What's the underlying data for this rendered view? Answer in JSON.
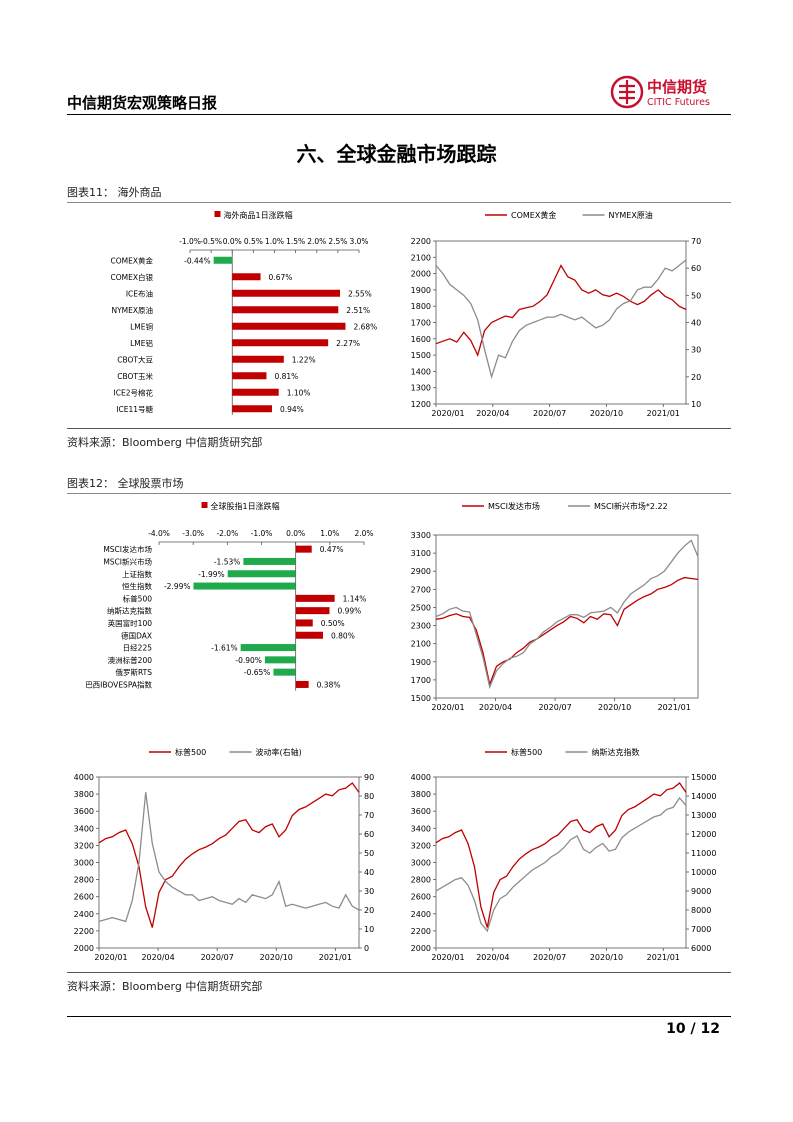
{
  "header": {
    "title": "中信期货宏观策略日报",
    "logo_cn": "中信期货",
    "logo_en": "CITIC Futures",
    "logo_icon": "citic-circle-logo-icon",
    "brand_color": "#c8102e"
  },
  "section_title": "六、全球金融市场跟踪",
  "figure11": {
    "title": "图表11：  海外商品",
    "source": "资料来源：Bloomberg 中信期货研究部"
  },
  "figure12": {
    "title": "图表12：  全球股票市场",
    "source": "资料来源：Bloomberg 中信期货研究部"
  },
  "footer": {
    "page": "10  /  12"
  },
  "colors": {
    "red": "#c00000",
    "green": "#1fab4b",
    "gray": "#8c8c8c"
  },
  "chart_data": [
    {
      "id": "commodities-bar",
      "type": "bar",
      "orientation": "horizontal",
      "legend": "海外商品1日涨跌幅",
      "categories": [
        "COMEX黄金",
        "COMEX白银",
        "ICE布油",
        "NYMEX原油",
        "LME铜",
        "LME铝",
        "CBOT大豆",
        "CBOT玉米",
        "ICE2号棉花",
        "ICE11号糖"
      ],
      "values": [
        -0.44,
        0.67,
        2.55,
        2.51,
        2.68,
        2.27,
        1.22,
        0.81,
        1.1,
        0.94
      ],
      "labels": [
        "-0.44%",
        "0.67%",
        "2.55%",
        "2.51%",
        "2.68%",
        "2.27%",
        "1.22%",
        "0.81%",
        "1.10%",
        "0.94%"
      ],
      "ticks": [
        "-1.0%",
        "-0.5%",
        "0.0%",
        "0.5%",
        "1.0%",
        "1.5%",
        "2.0%",
        "2.5%",
        "3.0%"
      ],
      "xlim": [
        -1.0,
        3.0
      ]
    },
    {
      "id": "gold-oil-line",
      "type": "line",
      "legend": [
        "COMEX黄金",
        "NYMEX原油"
      ],
      "x_ticks": [
        "2020/01",
        "2020/04",
        "2020/07",
        "2020/10",
        "2021/01"
      ],
      "y_left_ticks": [
        "2200",
        "2100",
        "2000",
        "1900",
        "1800",
        "1700",
        "1600",
        "1500",
        "1400",
        "1300",
        "1200"
      ],
      "y_right_ticks": [
        "70",
        "60",
        "50",
        "40",
        "30",
        "20",
        "10"
      ],
      "ylim_left": [
        1200,
        2200
      ],
      "ylim_right": [
        10,
        70
      ],
      "series": [
        {
          "name": "COMEX黄金",
          "axis": "left",
          "color": "#c00000",
          "values": [
            1570,
            1585,
            1600,
            1580,
            1640,
            1590,
            1500,
            1650,
            1700,
            1720,
            1740,
            1730,
            1780,
            1790,
            1800,
            1830,
            1870,
            1960,
            2050,
            1980,
            1960,
            1900,
            1880,
            1900,
            1870,
            1860,
            1880,
            1860,
            1830,
            1810,
            1830,
            1870,
            1900,
            1860,
            1840,
            1800,
            1780
          ]
        },
        {
          "name": "NYMEX原油",
          "axis": "right",
          "color": "#8c8c8c",
          "values": [
            61,
            58,
            54,
            52,
            50,
            47,
            41,
            30,
            20,
            28,
            27,
            33,
            37,
            39,
            40,
            41,
            42,
            42,
            43,
            42,
            41,
            42,
            40,
            38,
            39,
            41,
            45,
            47,
            48,
            52,
            53,
            53,
            56,
            60,
            59,
            61,
            63
          ]
        }
      ]
    },
    {
      "id": "equities-bar",
      "type": "bar",
      "orientation": "horizontal",
      "legend": "全球股指1日涨跌幅",
      "categories": [
        "MSCI发达市场",
        "MSCI新兴市场",
        "上证指数",
        "恒生指数",
        "标普500",
        "纳斯达克指数",
        "英国富时100",
        "德国DAX",
        "日经225",
        "澳洲标普200",
        "俄罗斯RTS",
        "巴西IBOVESPA指数"
      ],
      "values": [
        0.47,
        -1.53,
        -1.99,
        -2.99,
        1.14,
        0.99,
        0.5,
        0.8,
        -1.61,
        -0.9,
        -0.65,
        0.38
      ],
      "labels": [
        "0.47%",
        "-1.53%",
        "-1.99%",
        "-2.99%",
        "1.14%",
        "0.99%",
        "0.50%",
        "0.80%",
        "-1.61%",
        "-0.90%",
        "-0.65%",
        "0.38%"
      ],
      "ticks": [
        "-4.0%",
        "-3.0%",
        "-2.0%",
        "-1.0%",
        "0.0%",
        "1.0%",
        "2.0%"
      ],
      "xlim": [
        -4.0,
        2.0
      ]
    },
    {
      "id": "msci-line",
      "type": "line",
      "legend": [
        "MSCI发达市场",
        "MSCI新兴市场*2.22"
      ],
      "x_ticks": [
        "2020/01",
        "2020/04",
        "2020/07",
        "2020/10",
        "2021/01"
      ],
      "y_left_ticks": [
        "3300",
        "3100",
        "2900",
        "2700",
        "2500",
        "2300",
        "2100",
        "1900",
        "1700",
        "1500"
      ],
      "ylim_left": [
        1500,
        3300
      ],
      "series": [
        {
          "name": "MSCI发达市场",
          "color": "#c00000",
          "values": [
            2370,
            2380,
            2410,
            2430,
            2400,
            2390,
            2250,
            2000,
            1650,
            1850,
            1900,
            1930,
            2000,
            2050,
            2120,
            2150,
            2200,
            2250,
            2300,
            2340,
            2400,
            2380,
            2330,
            2400,
            2370,
            2430,
            2420,
            2300,
            2480,
            2530,
            2580,
            2620,
            2650,
            2700,
            2720,
            2750,
            2800,
            2830,
            2820,
            2810
          ]
        },
        {
          "name": "MSCI新兴市场*2.22",
          "color": "#8c8c8c",
          "values": [
            2400,
            2430,
            2480,
            2500,
            2460,
            2450,
            2200,
            1950,
            1620,
            1800,
            1880,
            1940,
            1960,
            2000,
            2100,
            2150,
            2230,
            2280,
            2340,
            2380,
            2420,
            2420,
            2390,
            2440,
            2450,
            2460,
            2500,
            2440,
            2560,
            2650,
            2700,
            2750,
            2820,
            2850,
            2900,
            3000,
            3100,
            3180,
            3240,
            3060
          ]
        }
      ]
    },
    {
      "id": "sp500-vix-line",
      "type": "line",
      "legend": [
        "标普500",
        "波动率(右轴)"
      ],
      "x_ticks": [
        "2020/01",
        "2020/04",
        "2020/07",
        "2020/10",
        "2021/01"
      ],
      "y_left_ticks": [
        "4000",
        "3800",
        "3600",
        "3400",
        "3200",
        "3000",
        "2800",
        "2600",
        "2400",
        "2200",
        "2000"
      ],
      "y_right_ticks": [
        "90",
        "80",
        "70",
        "60",
        "50",
        "40",
        "30",
        "20",
        "10",
        "0"
      ],
      "ylim_left": [
        2000,
        4000
      ],
      "ylim_right": [
        0,
        90
      ],
      "series": [
        {
          "name": "标普500",
          "axis": "left",
          "color": "#c00000",
          "values": [
            3230,
            3280,
            3300,
            3350,
            3380,
            3220,
            2950,
            2480,
            2240,
            2650,
            2800,
            2840,
            2950,
            3040,
            3100,
            3150,
            3180,
            3220,
            3280,
            3320,
            3400,
            3480,
            3500,
            3380,
            3350,
            3420,
            3450,
            3300,
            3380,
            3550,
            3620,
            3650,
            3700,
            3750,
            3800,
            3780,
            3850,
            3870,
            3930,
            3820
          ]
        },
        {
          "name": "波动率(右轴)",
          "axis": "right",
          "color": "#8c8c8c",
          "values": [
            14,
            15,
            16,
            15,
            14,
            25,
            45,
            82,
            55,
            40,
            35,
            32,
            30,
            28,
            28,
            25,
            26,
            27,
            25,
            24,
            23,
            26,
            24,
            28,
            27,
            26,
            28,
            35,
            22,
            23,
            22,
            21,
            22,
            23,
            24,
            22,
            21,
            28,
            22,
            20
          ]
        }
      ]
    },
    {
      "id": "sp500-nasdaq-line",
      "type": "line",
      "legend": [
        "标普500",
        "纳斯达克指数"
      ],
      "x_ticks": [
        "2020/01",
        "2020/04",
        "2020/07",
        "2020/10",
        "2021/01"
      ],
      "y_left_ticks": [
        "4000",
        "3800",
        "3600",
        "3400",
        "3200",
        "3000",
        "2800",
        "2600",
        "2400",
        "2200",
        "2000"
      ],
      "y_right_ticks": [
        "15000",
        "14000",
        "13000",
        "12000",
        "11000",
        "10000",
        "9000",
        "8000",
        "7000",
        "6000"
      ],
      "ylim_left": [
        2000,
        4000
      ],
      "ylim_right": [
        6000,
        15000
      ],
      "series": [
        {
          "name": "标普500",
          "axis": "left",
          "color": "#c00000",
          "values": [
            3230,
            3280,
            3300,
            3350,
            3380,
            3220,
            2950,
            2480,
            2240,
            2650,
            2800,
            2840,
            2950,
            3040,
            3100,
            3150,
            3180,
            3220,
            3280,
            3320,
            3400,
            3480,
            3500,
            3380,
            3350,
            3420,
            3450,
            3300,
            3380,
            3550,
            3620,
            3650,
            3700,
            3750,
            3800,
            3780,
            3850,
            3870,
            3930,
            3820
          ]
        },
        {
          "name": "纳斯达克指数",
          "axis": "right",
          "color": "#8c8c8c",
          "values": [
            9000,
            9200,
            9400,
            9600,
            9700,
            9300,
            8500,
            7300,
            6900,
            8000,
            8600,
            8800,
            9200,
            9500,
            9800,
            10100,
            10300,
            10500,
            10800,
            11000,
            11300,
            11700,
            11900,
            11200,
            11000,
            11300,
            11500,
            11100,
            11200,
            11800,
            12100,
            12300,
            12500,
            12700,
            12900,
            13000,
            13300,
            13400,
            13900,
            13500
          ]
        }
      ]
    }
  ]
}
